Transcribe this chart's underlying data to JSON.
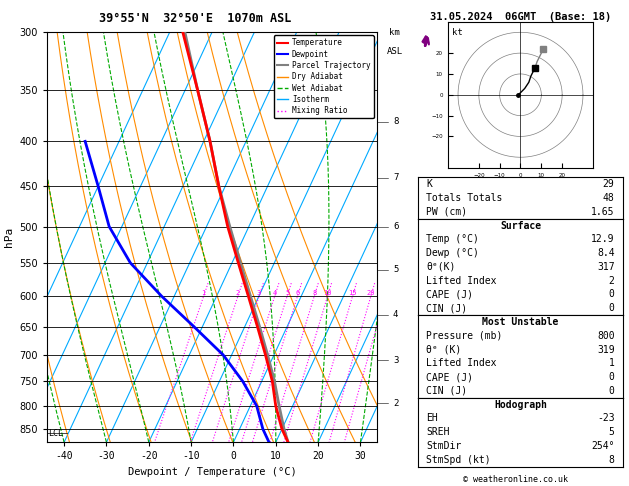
{
  "title_left": "39°55'N  32°50'E  1070m ASL",
  "title_right": "31.05.2024  06GMT  (Base: 18)",
  "xlabel": "Dewpoint / Temperature (°C)",
  "ylabel_left": "hPa",
  "pressure_levels": [
    300,
    350,
    400,
    450,
    500,
    550,
    600,
    650,
    700,
    750,
    800,
    850
  ],
  "p_min": 300,
  "p_max": 880,
  "t_min": -44,
  "t_max": 34,
  "skew_factor": 45.0,
  "temp_profile_p": [
    880,
    850,
    800,
    750,
    700,
    650,
    600,
    550,
    500,
    450,
    400,
    350,
    300
  ],
  "temp_profile_t": [
    12.9,
    10.0,
    6.0,
    2.5,
    -2.0,
    -7.0,
    -12.5,
    -18.5,
    -25.0,
    -31.5,
    -38.5,
    -47.0,
    -57.0
  ],
  "dewp_profile_p": [
    880,
    850,
    800,
    750,
    700,
    650,
    600,
    550,
    500,
    450,
    400
  ],
  "dewp_profile_t": [
    8.4,
    5.5,
    1.5,
    -4.5,
    -12.0,
    -22.0,
    -33.0,
    -44.0,
    -53.0,
    -60.0,
    -68.0
  ],
  "parcel_profile_p": [
    880,
    850,
    800,
    750,
    700,
    650,
    600,
    550,
    500,
    450,
    400,
    350,
    300
  ],
  "parcel_profile_t": [
    12.9,
    10.5,
    6.8,
    3.0,
    -1.5,
    -6.5,
    -12.0,
    -18.0,
    -24.5,
    -31.5,
    -38.5,
    -47.0,
    -56.5
  ],
  "lcl_pressure": 860,
  "color_temp": "#ff0000",
  "color_dewp": "#0000ff",
  "color_parcel": "#808080",
  "color_dry_adiabat": "#ff8c00",
  "color_wet_adiabat": "#00aa00",
  "color_isotherm": "#00aaff",
  "color_mixing": "#ff00ff",
  "km_ticks": [
    2,
    3,
    4,
    5,
    6,
    7,
    8
  ],
  "km_pressures": [
    795,
    710,
    630,
    560,
    500,
    440,
    380
  ],
  "info_K": 29,
  "info_TT": 48,
  "info_PW": 1.65,
  "surf_temp": 12.9,
  "surf_dewp": 8.4,
  "surf_theta_e": 317,
  "surf_LI": 2,
  "surf_CAPE": 0,
  "surf_CIN": 0,
  "mu_pressure": 800,
  "mu_theta_e": 319,
  "mu_LI": 1,
  "mu_CAPE": 0,
  "mu_CIN": 0,
  "hodo_EH": -23,
  "hodo_SREH": 5,
  "hodo_StmDir": 254,
  "hodo_StmSpd": 8,
  "background_color": "#ffffff"
}
